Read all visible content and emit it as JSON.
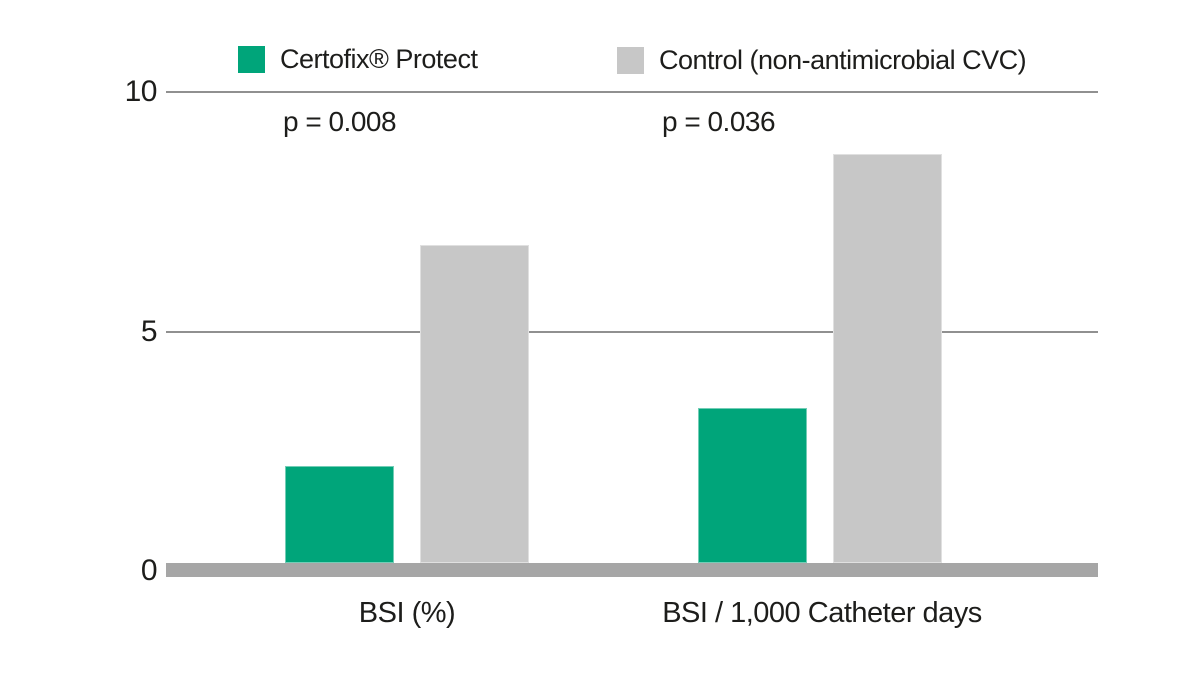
{
  "colors": {
    "certofix_green": "#00a57a",
    "control_gray": "#c7c7c7",
    "gridline_gray": "#909090",
    "baseline_gray": "#a6a6a6",
    "text_black": "#1d1d1b"
  },
  "legend": {
    "position": "top",
    "items": [
      {
        "label": "Certofix® Protect",
        "color": "#00a57a"
      },
      {
        "label": "Control (non-antimicrobial CVC)",
        "color": "#c7c7c7"
      }
    ]
  },
  "chart_data": {
    "type": "bar",
    "categories": [
      "BSI (%)",
      "BSI / 1,000 Catheter days"
    ],
    "series": [
      {
        "name": "Certofix® Protect",
        "color": "#00a57a",
        "values": [
          2.2,
          3.4
        ]
      },
      {
        "name": "Control (non-antimicrobial CVC)",
        "color": "#c7c7c7",
        "values": [
          6.8,
          8.7
        ]
      }
    ],
    "p_values": [
      "p = 0.008",
      "p = 0.036"
    ],
    "yticks": [
      0,
      5,
      10
    ],
    "ylim": [
      0,
      10
    ],
    "xlabel": "",
    "ylabel": "",
    "title": "",
    "grid": "horizontal-lines-at-5-and-10"
  }
}
